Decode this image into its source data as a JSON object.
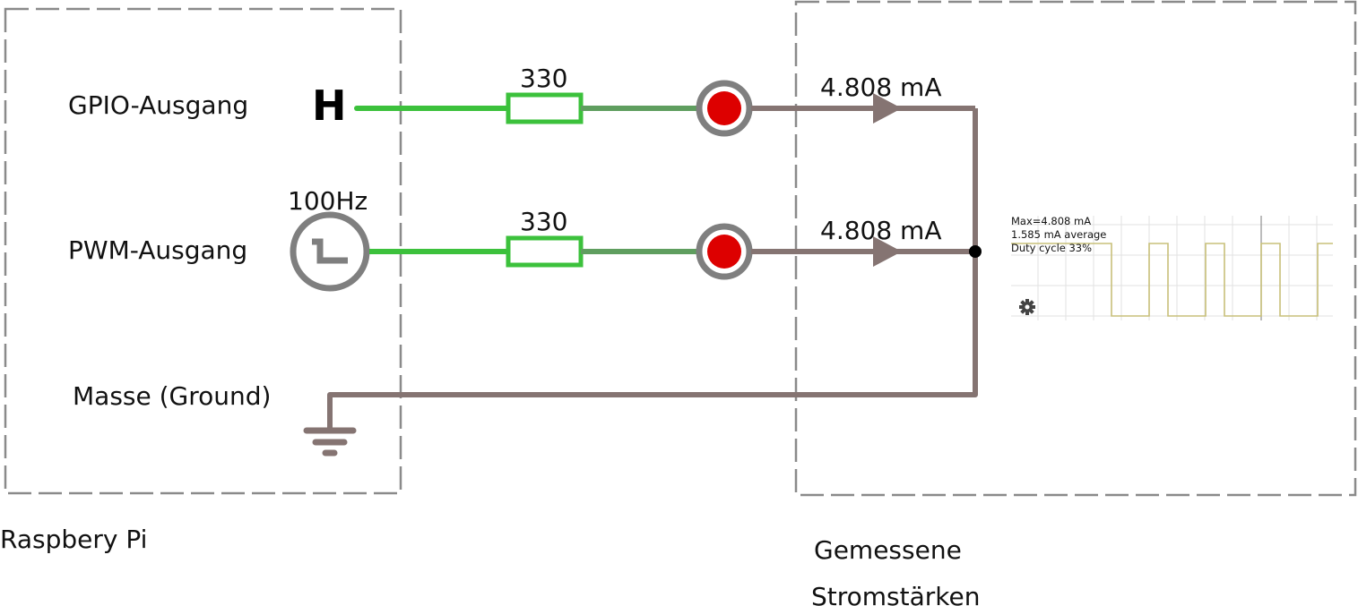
{
  "left_box": {
    "caption": "Raspbery Pi",
    "gpio_label": "GPIO-Ausgang",
    "gpio_level": "H",
    "pwm_label": "PWM-Ausgang",
    "pwm_frequency": "100Hz",
    "ground_label": "Masse (Ground)"
  },
  "circuit": {
    "resistor_top_value": "330",
    "resistor_bottom_value": "330",
    "current_top": "4.808 mA",
    "current_bottom": "4.808 mA",
    "colors": {
      "wire_green": "#3cc13c",
      "resistor_green": "#5f9e5f",
      "wire_brown": "#857472",
      "led_red": "#dd0000",
      "led_ring": "#7f7f7f",
      "box_dash": "#8a8a8a"
    }
  },
  "right_box": {
    "caption_line1": "Gemessene",
    "caption_line2": "Stromstärken",
    "scope_max": "Max=4.808 mA",
    "scope_avg": "1.585 mA average",
    "scope_duty": "Duty cycle 33%",
    "scope_icon": "gear-icon"
  }
}
